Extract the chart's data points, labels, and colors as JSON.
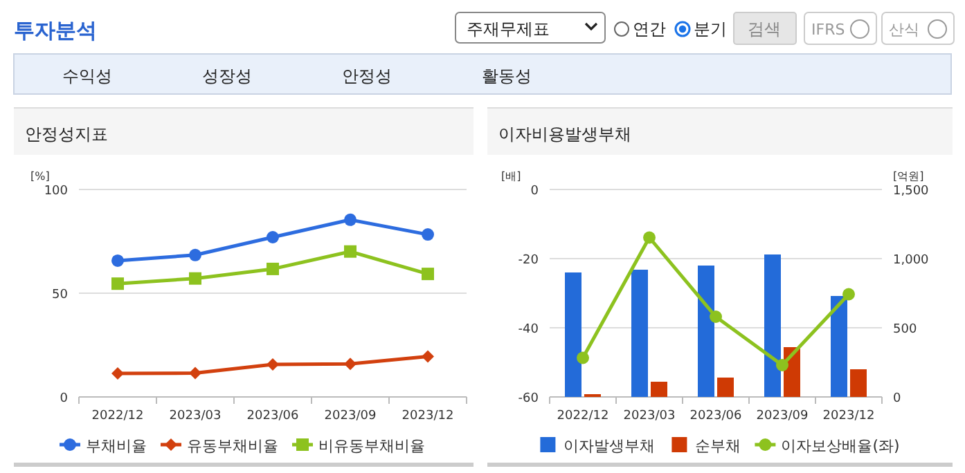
{
  "chart_data": [
    {
      "type": "other",
      "title": "투자분석",
      "annotations": [
        "주재무제표",
        "연간",
        "분기",
        "검색",
        "IFRS",
        "산식",
        "수익성",
        "성장성",
        "안정성",
        "활동성"
      ]
    },
    {
      "type": "line",
      "title": "안정성지표",
      "ylabel": "[%]",
      "categories": [
        "2022/12",
        "2023/03",
        "2023/06",
        "2023/09",
        "2023/12"
      ],
      "ylim": [
        0,
        100
      ],
      "yticks": [
        0,
        50,
        100
      ],
      "grid": "y",
      "legend": "bottom",
      "series": [
        {
          "name": "부채비율",
          "color": "#2d6cdf",
          "marker": "circle",
          "values": [
            65.7,
            68.4,
            77,
            85.4,
            78.3
          ]
        },
        {
          "name": "유동부채비율",
          "color": "#d2400e",
          "marker": "diamond",
          "values": [
            11.3,
            11.5,
            15.7,
            15.9,
            19.5
          ]
        },
        {
          "name": "비유동부채비율",
          "color": "#8dc21f",
          "marker": "square",
          "values": [
            54.6,
            57.1,
            61.7,
            70.1,
            59.3
          ]
        }
      ]
    },
    {
      "type": "bar",
      "title": "이자비용발생부채",
      "ylabel": "[배]",
      "y2label": "[억원]",
      "categories": [
        "2022/12",
        "2023/03",
        "2023/06",
        "2023/09",
        "2023/12"
      ],
      "ylim": [
        -60,
        0
      ],
      "yticks": [
        0,
        -20,
        -40,
        -60
      ],
      "y2lim": [
        0,
        1500
      ],
      "y2ticks": [
        0,
        500,
        {
          "value": 1000,
          "label": "1,000"
        },
        {
          "value": 1500,
          "label": "1,500"
        }
      ],
      "grid": "y",
      "legend": "bottom",
      "series": [
        {
          "name": "이자발생부채",
          "color": "#236bd9",
          "axis": "y2",
          "values": [
            900,
            920,
            950,
            1030,
            730
          ]
        },
        {
          "name": "순부채",
          "color": "#cf3a04",
          "axis": "y2",
          "values": [
            20,
            110,
            140,
            360,
            200
          ]
        },
        {
          "name": "이자보상배율(좌)",
          "type": "line",
          "marker": "circle",
          "color": "#8dc21f",
          "axis": "y",
          "values": [
            -48.7,
            -13.9,
            -36.8,
            -50.8,
            -30.3
          ]
        }
      ]
    }
  ]
}
